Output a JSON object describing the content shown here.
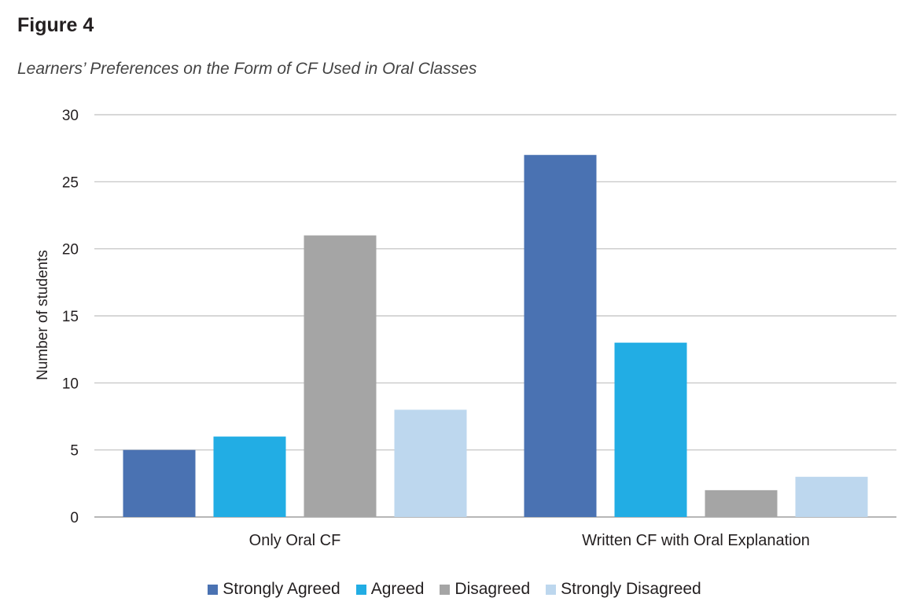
{
  "figure": {
    "label": "Figure 4",
    "title": "Learners’ Preferences on the Form of CF Used in Oral Classes"
  },
  "chart_data": {
    "type": "bar",
    "categories": [
      "Only Oral CF",
      "Written CF with Oral Explanation"
    ],
    "series": [
      {
        "name": "Strongly Agreed",
        "values": [
          5,
          27
        ],
        "color": "#4a72b2"
      },
      {
        "name": "Agreed",
        "values": [
          6,
          13
        ],
        "color": "#22ade4"
      },
      {
        "name": "Disagreed",
        "values": [
          21,
          2
        ],
        "color": "#a5a5a5"
      },
      {
        "name": "Strongly Disagreed",
        "values": [
          8,
          3
        ],
        "color": "#bdd7ee"
      }
    ],
    "ylabel": "Number of students",
    "xlabel": "",
    "ylim": [
      0,
      30
    ],
    "yticks": [
      0,
      5,
      10,
      15,
      20,
      25,
      30
    ],
    "grid": true,
    "legend_position": "bottom"
  }
}
